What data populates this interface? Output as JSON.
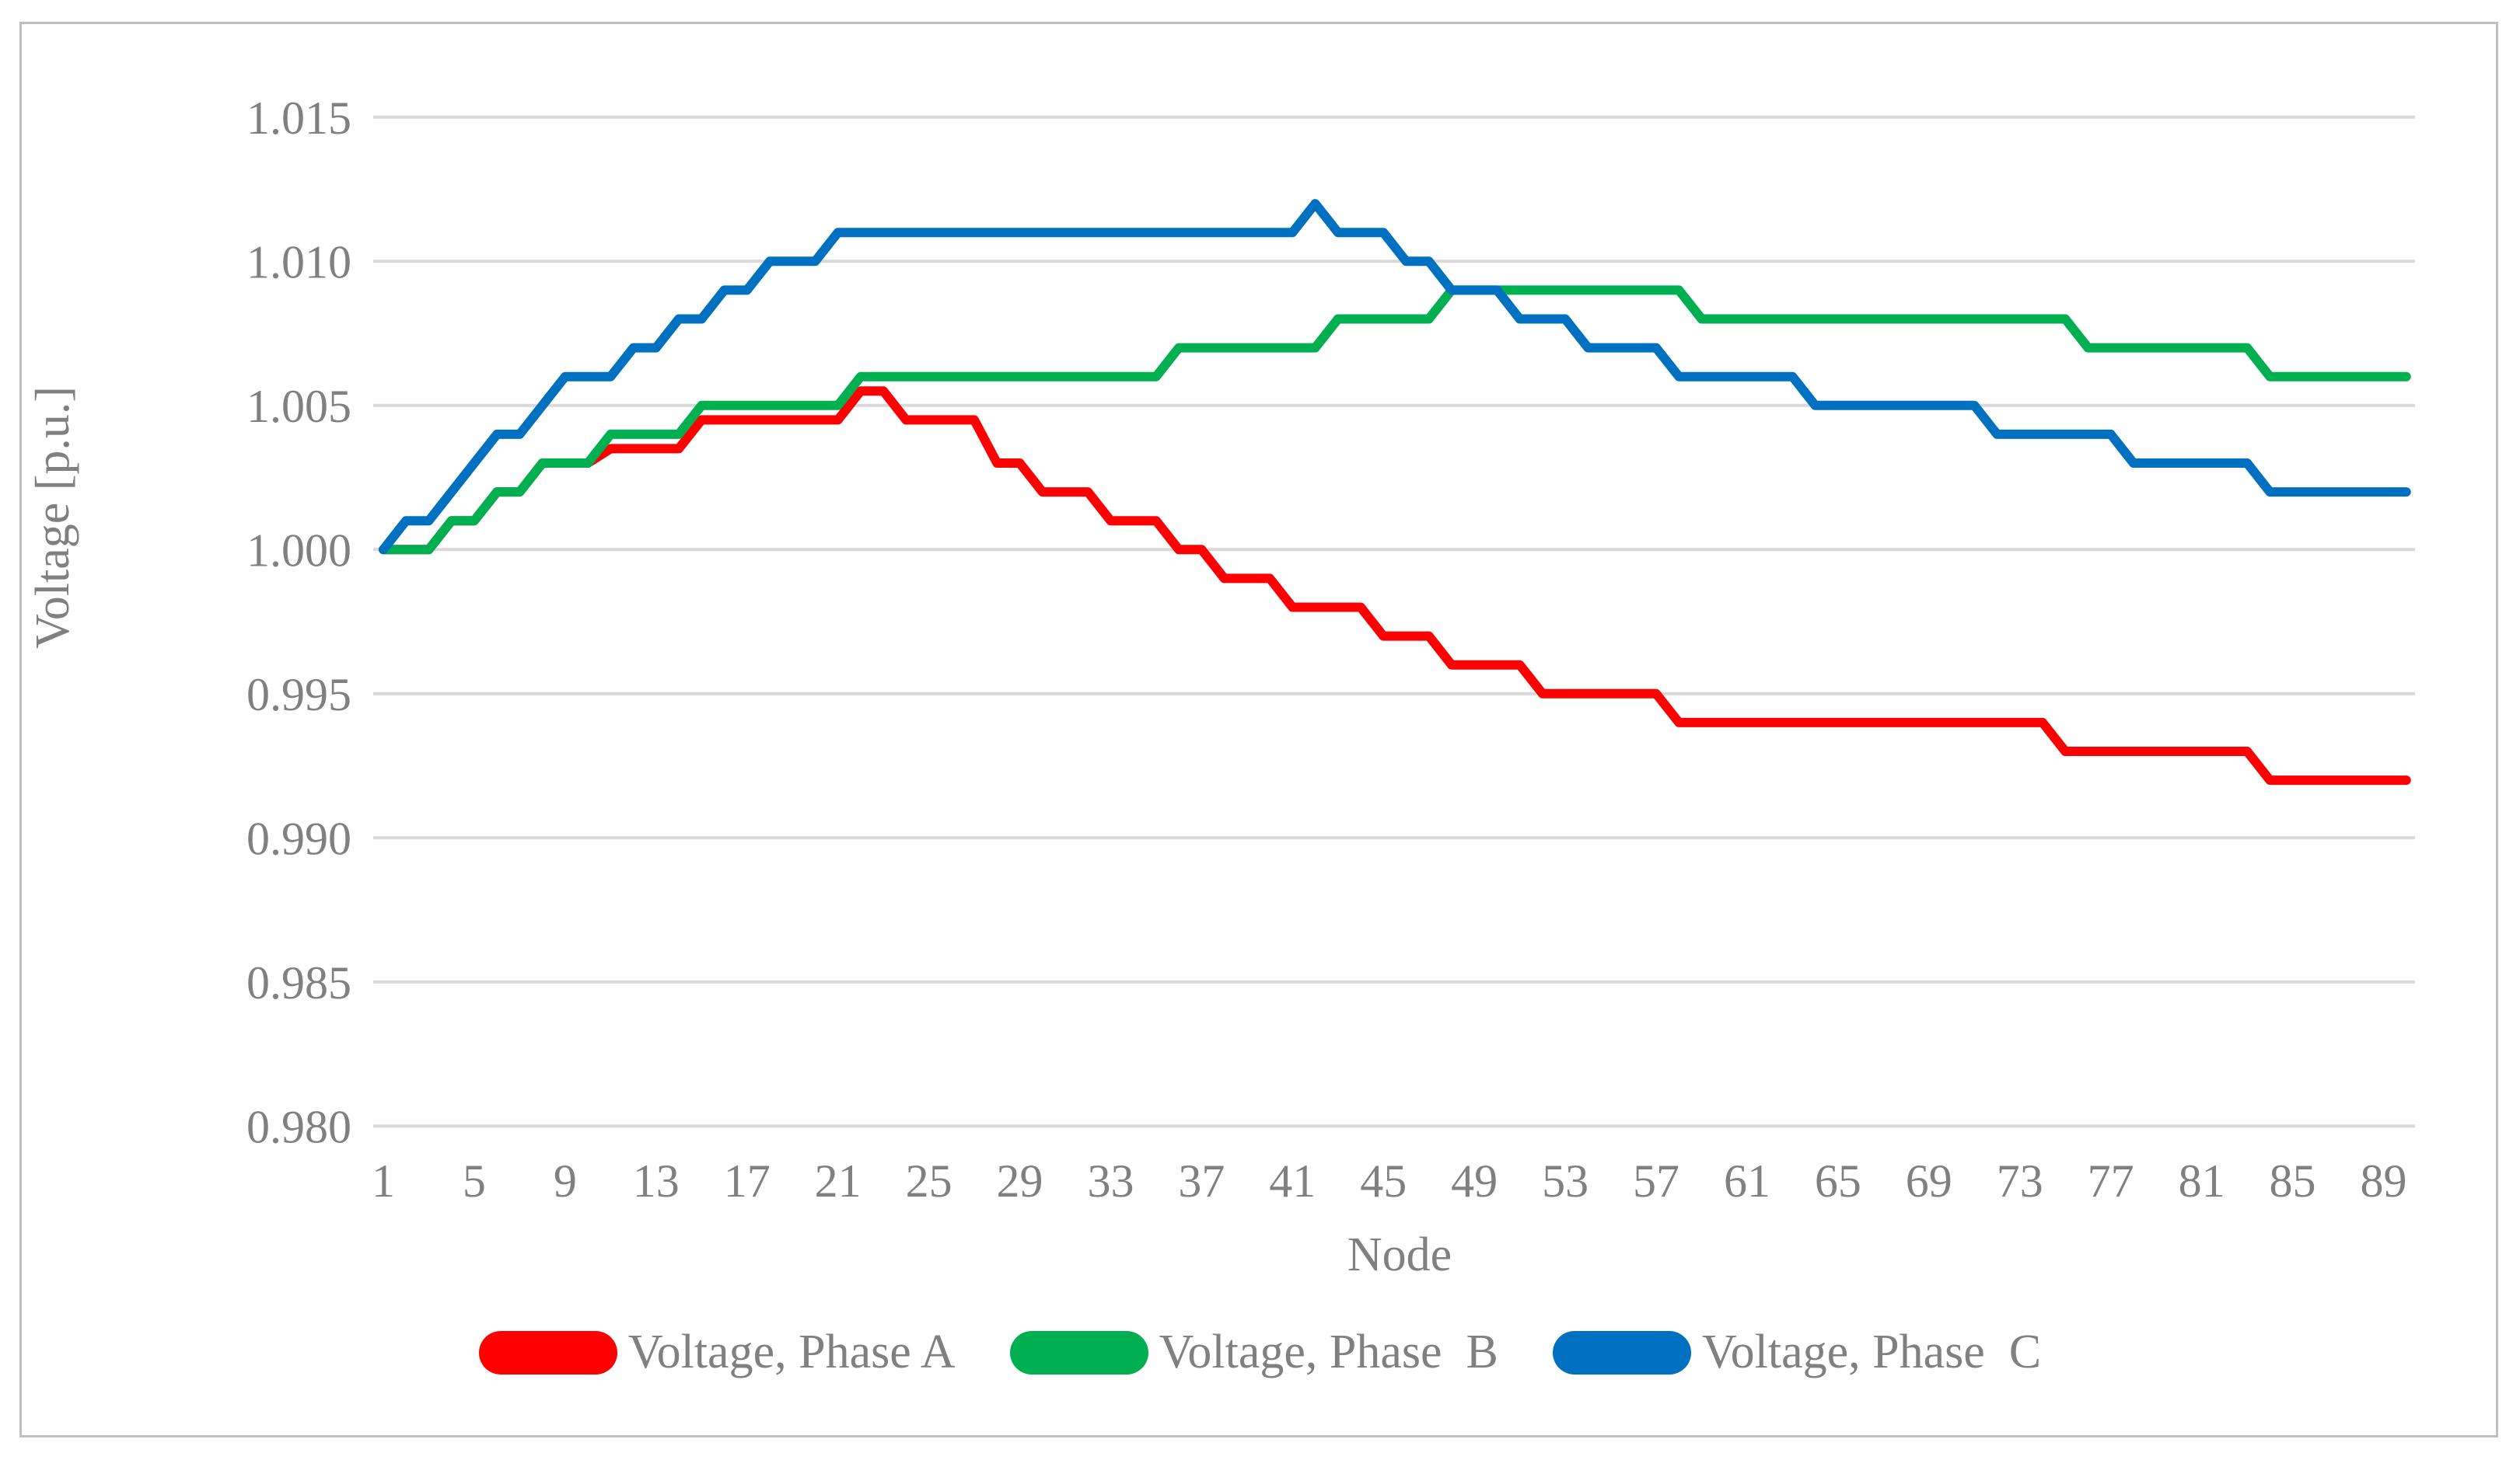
{
  "figure": {
    "background": "#FFFFFF",
    "border_color": "#BFBFBF"
  },
  "chart_data": {
    "type": "line",
    "title": "",
    "xlabel": "Node",
    "ylabel": "Voltage [p.u.]",
    "x_start": 1,
    "x_end": 90,
    "grid": true,
    "legend_position": "bottom",
    "gridline_color": "#D9D9D9",
    "tick_color": "#808080",
    "ylim": [
      0.978,
      1.017
    ],
    "ytick_values": [
      1.015,
      1.01,
      1.005,
      1.0,
      0.995,
      0.99,
      0.985,
      0.98
    ],
    "ytick_labels": [
      "1.015",
      "1.010",
      "1.005",
      "1.000",
      "0.995",
      "0.990",
      "0.985",
      "0.980"
    ],
    "xtick_values": [
      1,
      5,
      9,
      13,
      17,
      21,
      25,
      29,
      33,
      37,
      41,
      45,
      49,
      53,
      57,
      61,
      65,
      69,
      73,
      77,
      81,
      85,
      89
    ],
    "xtick_labels": [
      "1",
      "5",
      "9",
      "13",
      "17",
      "21",
      "25",
      "29",
      "33",
      "37",
      "41",
      "45",
      "49",
      "53",
      "57",
      "61",
      "65",
      "69",
      "73",
      "77",
      "81",
      "85",
      "89"
    ],
    "series": [
      {
        "name": "Voltage, Phase A",
        "color": "#FF0000",
        "values": [
          1.0,
          1.0,
          1.0,
          1.001,
          1.001,
          1.002,
          1.002,
          1.003,
          1.003,
          1.003,
          1.0035,
          1.0035,
          1.0035,
          1.0035,
          1.0045,
          1.0045,
          1.0045,
          1.0045,
          1.0045,
          1.0045,
          1.0045,
          1.0055,
          1.0055,
          1.0045,
          1.0045,
          1.0045,
          1.0045,
          1.003,
          1.003,
          1.002,
          1.002,
          1.002,
          1.001,
          1.001,
          1.001,
          1.0,
          1.0,
          0.999,
          0.999,
          0.999,
          0.998,
          0.998,
          0.998,
          0.998,
          0.997,
          0.997,
          0.997,
          0.996,
          0.996,
          0.996,
          0.996,
          0.995,
          0.995,
          0.995,
          0.995,
          0.995,
          0.995,
          0.994,
          0.994,
          0.994,
          0.994,
          0.994,
          0.994,
          0.994,
          0.994,
          0.994,
          0.994,
          0.994,
          0.994,
          0.994,
          0.994,
          0.994,
          0.994,
          0.994,
          0.993,
          0.993,
          0.993,
          0.993,
          0.993,
          0.993,
          0.993,
          0.993,
          0.993,
          0.992,
          0.992,
          0.992,
          0.992,
          0.992,
          0.992,
          0.992
        ]
      },
      {
        "name": "Voltage, Phase  B",
        "color": "#00B050",
        "values": [
          1.0,
          1.0,
          1.0,
          1.001,
          1.001,
          1.002,
          1.002,
          1.003,
          1.003,
          1.003,
          1.004,
          1.004,
          1.004,
          1.004,
          1.005,
          1.005,
          1.005,
          1.005,
          1.005,
          1.005,
          1.005,
          1.006,
          1.006,
          1.006,
          1.006,
          1.006,
          1.006,
          1.006,
          1.006,
          1.006,
          1.006,
          1.006,
          1.006,
          1.006,
          1.006,
          1.007,
          1.007,
          1.007,
          1.007,
          1.007,
          1.007,
          1.007,
          1.008,
          1.008,
          1.008,
          1.008,
          1.008,
          1.009,
          1.009,
          1.009,
          1.009,
          1.009,
          1.009,
          1.009,
          1.009,
          1.009,
          1.009,
          1.009,
          1.008,
          1.008,
          1.008,
          1.008,
          1.008,
          1.008,
          1.008,
          1.008,
          1.008,
          1.008,
          1.008,
          1.008,
          1.008,
          1.008,
          1.008,
          1.008,
          1.008,
          1.007,
          1.007,
          1.007,
          1.007,
          1.007,
          1.007,
          1.007,
          1.007,
          1.006,
          1.006,
          1.006,
          1.006,
          1.006,
          1.006,
          1.006
        ]
      },
      {
        "name": "Voltage, Phase  C",
        "color": "#0070C0",
        "values": [
          1.0,
          1.001,
          1.001,
          1.002,
          1.003,
          1.004,
          1.004,
          1.005,
          1.006,
          1.006,
          1.006,
          1.007,
          1.007,
          1.008,
          1.008,
          1.009,
          1.009,
          1.01,
          1.01,
          1.01,
          1.011,
          1.011,
          1.011,
          1.011,
          1.011,
          1.011,
          1.011,
          1.011,
          1.011,
          1.011,
          1.011,
          1.011,
          1.011,
          1.011,
          1.011,
          1.011,
          1.011,
          1.011,
          1.011,
          1.011,
          1.011,
          1.012,
          1.011,
          1.011,
          1.011,
          1.01,
          1.01,
          1.009,
          1.009,
          1.009,
          1.008,
          1.008,
          1.008,
          1.007,
          1.007,
          1.007,
          1.007,
          1.006,
          1.006,
          1.006,
          1.006,
          1.006,
          1.006,
          1.005,
          1.005,
          1.005,
          1.005,
          1.005,
          1.005,
          1.005,
          1.005,
          1.004,
          1.004,
          1.004,
          1.004,
          1.004,
          1.004,
          1.003,
          1.003,
          1.003,
          1.003,
          1.003,
          1.003,
          1.002,
          1.002,
          1.002,
          1.002,
          1.002,
          1.002,
          1.002
        ]
      }
    ]
  }
}
